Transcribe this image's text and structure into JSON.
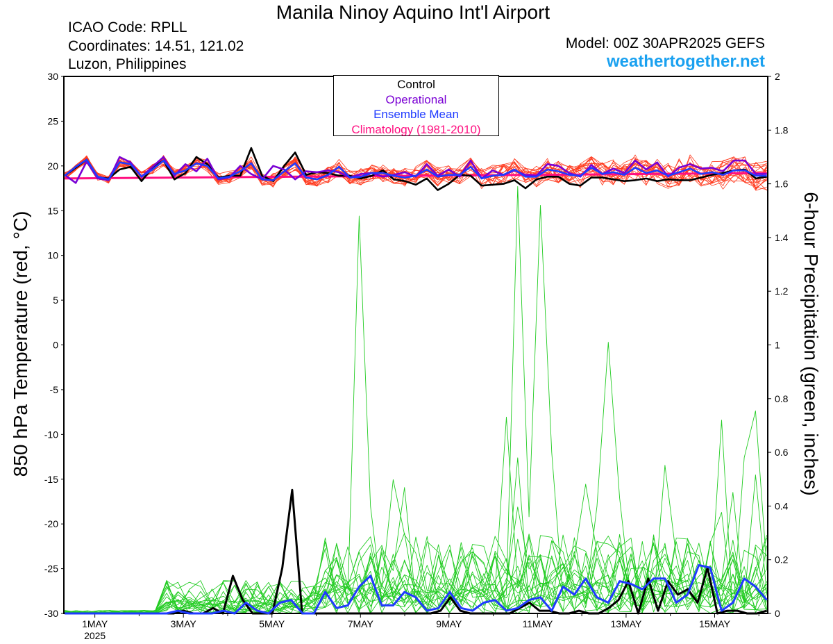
{
  "header": {
    "title": "Manila Ninoy Aquino Int'l Airport",
    "icao": "ICAO Code: RPLL",
    "coords": "Coordinates: 14.51, 121.02",
    "region": "Luzon, Philippines",
    "model": "Model: 00Z 30APR2025 GEFS",
    "site": "weathertogether.net"
  },
  "chart_data": {
    "type": "line",
    "left_axis": {
      "label": "850 hPa Temperature (red, °C)",
      "ylim": [
        -30,
        30
      ],
      "ticks": [
        30,
        25,
        20,
        15,
        10,
        5,
        0,
        -5,
        -10,
        -15,
        -20,
        -25,
        -30
      ]
    },
    "right_axis": {
      "label": "6-hour Precipitation (green, inches)",
      "ylim": [
        0,
        2
      ],
      "ticks": [
        "2",
        "1.8",
        "1.6",
        "1.4",
        "1.2",
        "1",
        "0.8",
        "0.6",
        "0.4",
        "0.2",
        "0"
      ]
    },
    "x_ticks": [
      {
        "day": 1,
        "label": "1MAY",
        "sub": "2025"
      },
      {
        "day": 3,
        "label": "3MAY",
        "sub": ""
      },
      {
        "day": 5,
        "label": "5MAY",
        "sub": ""
      },
      {
        "day": 7,
        "label": "7MAY",
        "sub": ""
      },
      {
        "day": 9,
        "label": "9MAY",
        "sub": ""
      },
      {
        "day": 11,
        "label": "11MAY",
        "sub": ""
      },
      {
        "day": 13,
        "label": "13MAY",
        "sub": ""
      },
      {
        "day": 15,
        "label": "15MAY",
        "sub": ""
      }
    ],
    "x_range_days": [
      0.3,
      16.2
    ],
    "legend": [
      "Control",
      "Operational",
      "Ensemble Mean",
      "Climatology (1981-2010)"
    ],
    "colors": {
      "control": "#000000",
      "operational": "#7a00d4",
      "mean": "#1f3bff",
      "climatology": "#ff0f80",
      "members_temp": "#ff3b1f",
      "members_precip": "#22cc22"
    },
    "series": {
      "control_temp": [
        18.9,
        19.8,
        20.7,
        18.7,
        18.6,
        19.6,
        19.9,
        18.3,
        19.8,
        20.6,
        18.5,
        19.2,
        21.0,
        20.2,
        18.7,
        18.9,
        18.9,
        22.0,
        18.9,
        18.3,
        20.0,
        21.5,
        19.0,
        19.3,
        19.2,
        18.9,
        18.9,
        18.6,
        18.9,
        19.5,
        18.5,
        18.3,
        17.9,
        18.6,
        17.3,
        18.0,
        19.0,
        18.9,
        17.8,
        17.9,
        18.0,
        18.4,
        17.5,
        18.5,
        18.8,
        18.8,
        18.0,
        17.8,
        18.7,
        18.7,
        18.5,
        18.3,
        18.4,
        18.6,
        18.3,
        18.5,
        18.4,
        18.4,
        18.7,
        19.0,
        19.2,
        19.5,
        19.6,
        18.6,
        18.8
      ],
      "operational_temp": [
        19.0,
        18.1,
        20.5,
        18.6,
        18.4,
        21.0,
        20.4,
        18.8,
        19.9,
        21.0,
        18.9,
        20.2,
        19.4,
        20.8,
        18.5,
        18.7,
        20.0,
        19.1,
        18.5,
        20.0,
        19.6,
        18.5,
        19.4,
        19.3,
        19.5,
        19.3,
        18.7,
        19.1,
        19.2,
        18.8,
        19.0,
        19.3,
        18.8,
        20.2,
        18.9,
        19.6,
        18.8,
        20.6,
        18.6,
        19.5,
        19.0,
        19.5,
        19.0,
        18.9,
        20.2,
        20.0,
        19.2,
        18.8,
        20.1,
        19.1,
        19.7,
        19.2,
        20.6,
        19.6,
        20.4,
        18.8,
        19.8,
        20.2,
        19.7,
        19.8,
        19.4,
        20.6,
        20.6,
        19.1,
        19.1
      ],
      "mean_temp": [
        18.9,
        19.9,
        20.7,
        18.8,
        18.5,
        20.4,
        20.2,
        18.8,
        19.6,
        20.6,
        19.1,
        19.5,
        20.3,
        20.0,
        18.6,
        18.8,
        19.4,
        20.3,
        18.5,
        18.4,
        19.4,
        20.3,
        18.7,
        18.5,
        19.0,
        19.9,
        18.7,
        18.8,
        19.2,
        19.2,
        18.9,
        18.7,
        18.9,
        19.6,
        18.8,
        19.0,
        19.0,
        19.9,
        18.6,
        18.9,
        19.0,
        19.6,
        18.8,
        18.8,
        19.6,
        19.4,
        19.0,
        18.9,
        19.8,
        19.1,
        19.3,
        19.0,
        19.8,
        19.2,
        19.5,
        18.9,
        19.3,
        19.7,
        19.1,
        19.3,
        19.0,
        19.5,
        19.5,
        18.9,
        18.9
      ],
      "climatology_temp": [
        18.6,
        19.2
      ],
      "control_precip": [
        0,
        0,
        0,
        0,
        0,
        0,
        0,
        0,
        0,
        0,
        0,
        0,
        0.01,
        0,
        0,
        0.02,
        0,
        0.14,
        0.05,
        0,
        0,
        0,
        0.17,
        0.46,
        0,
        0,
        0,
        0,
        0,
        0,
        0,
        0,
        0,
        0,
        0,
        0,
        0,
        0,
        0.01,
        0.06,
        0.01,
        0,
        0,
        0,
        0,
        0,
        0.02,
        0.04,
        0.01,
        0.01,
        0,
        0,
        0.01,
        0,
        0,
        0.02,
        0.05,
        0.12,
        0,
        0.13,
        0.01,
        0.12,
        0.07,
        0.09,
        0.04,
        0.17,
        0,
        0.01,
        0.01,
        0,
        0,
        0.01
      ],
      "mean_precip": [
        0,
        0,
        0,
        0,
        0,
        0,
        0,
        0,
        0,
        0,
        0.01,
        0,
        0,
        0,
        0.01,
        0,
        0.04,
        0.01,
        0,
        0.04,
        0.05,
        0,
        0,
        0.08,
        0.02,
        0.03,
        0.1,
        0.14,
        0.03,
        0.03,
        0.08,
        0.06,
        0.01,
        0.02,
        0.08,
        0.02,
        0.01,
        0.04,
        0.05,
        0.01,
        0.02,
        0.05,
        0.06,
        0.01,
        0.1,
        0.07,
        0.13,
        0.06,
        0.04,
        0.12,
        0.11,
        0.09,
        0.13,
        0.13,
        0.04,
        0.07,
        0.18,
        0.17,
        0.01,
        0.04,
        0.13,
        0.1,
        0.05
      ]
    }
  }
}
